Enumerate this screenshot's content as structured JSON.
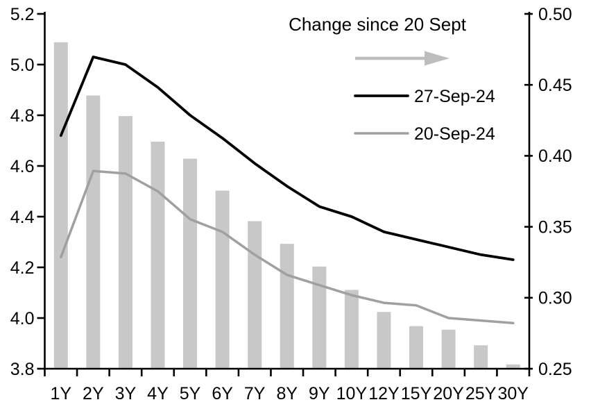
{
  "chart_data": {
    "type": "combo-bar-line",
    "title": "",
    "categories": [
      "1Y",
      "2Y",
      "3Y",
      "4Y",
      "5Y",
      "6Y",
      "7Y",
      "8Y",
      "9Y",
      "10Y",
      "12Y",
      "15Y",
      "20Y",
      "25Y",
      "30Y"
    ],
    "series": [
      {
        "name": "Change since 20 Sept",
        "type": "bar",
        "axis": "right",
        "color": "#c8c8c8",
        "values": [
          0.48,
          0.4425,
          0.428,
          0.41,
          0.398,
          0.3755,
          0.354,
          0.338,
          0.322,
          0.3055,
          0.29,
          0.28,
          0.2775,
          0.2665,
          0.253
        ]
      },
      {
        "name": "27-Sep-24",
        "type": "line",
        "axis": "left",
        "color": "#000000",
        "values": [
          4.72,
          5.03,
          5.0,
          4.91,
          4.8,
          4.71,
          4.61,
          4.52,
          4.44,
          4.4,
          4.34,
          4.31,
          4.28,
          4.25,
          4.23
        ]
      },
      {
        "name": "20-Sep-24",
        "type": "line",
        "axis": "left",
        "color": "#a0a0a0",
        "values": [
          4.24,
          4.58,
          4.57,
          4.5,
          4.39,
          4.34,
          4.25,
          4.17,
          4.13,
          4.09,
          4.06,
          4.05,
          4.0,
          3.99,
          3.98
        ]
      }
    ],
    "left_axis": {
      "min": 3.8,
      "max": 5.2,
      "step": 0.2,
      "tick_labels": [
        "5.2",
        "5.0",
        "4.8",
        "4.6",
        "4.4",
        "4.2",
        "4.0",
        "3.8"
      ],
      "tick_values": [
        5.2,
        5.0,
        4.8,
        4.6,
        4.4,
        4.2,
        4.0,
        3.8
      ]
    },
    "right_axis": {
      "min": 0.25,
      "max": 0.5,
      "step": 0.05,
      "tick_labels": [
        "0.50",
        "0.45",
        "0.40",
        "0.35",
        "0.30",
        "0.25"
      ],
      "tick_values": [
        0.5,
        0.45,
        0.4,
        0.35,
        0.3,
        0.25
      ]
    },
    "legend": {
      "position": "top-center-inside",
      "title": "Change since 20 Sept",
      "arrow_icon_color": "#bdbdbd",
      "entries": [
        {
          "label": "27-Sep-24",
          "color": "#000000"
        },
        {
          "label": "20-Sep-24",
          "color": "#a0a0a0"
        }
      ]
    },
    "grid": false,
    "axis_color": "#000000",
    "background_color": "#ffffff"
  }
}
